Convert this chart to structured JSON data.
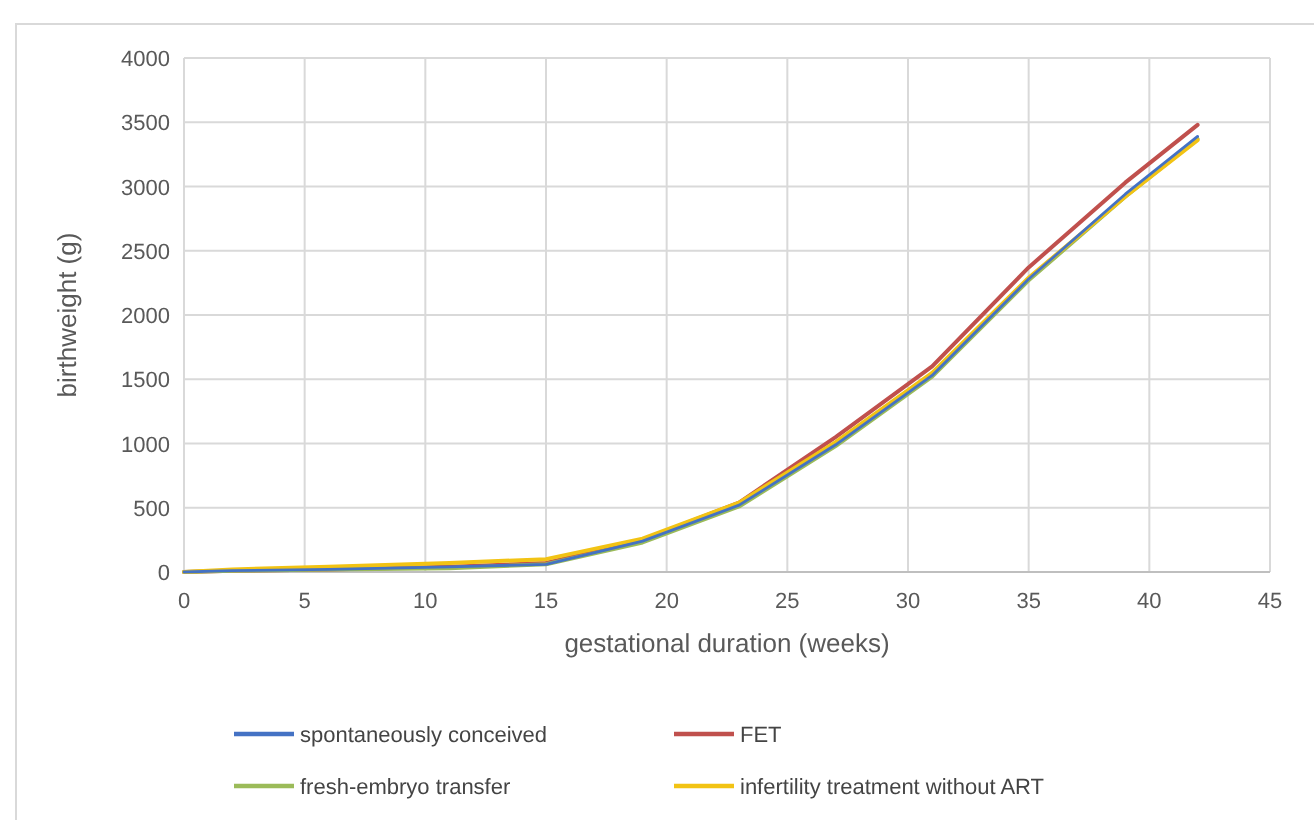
{
  "chart_data": {
    "type": "line",
    "xlabel": "gestational duration (weeks)",
    "ylabel": "birthweight (g)",
    "x": [
      0,
      2,
      6,
      11,
      15,
      19,
      23,
      27,
      31,
      35,
      39,
      42
    ],
    "series": [
      {
        "name": "spontaneously conceived",
        "color": "#4472c4",
        "values": [
          0,
          10,
          20,
          40,
          60,
          240,
          520,
          990,
          1530,
          2280,
          2940,
          3390
        ]
      },
      {
        "name": "FET",
        "color": "#c0504d",
        "values": [
          0,
          10,
          20,
          40,
          70,
          250,
          540,
          1050,
          1600,
          2370,
          3030,
          3480
        ]
      },
      {
        "name": "fresh-embryo transfer",
        "color": "#9bbb59",
        "values": [
          0,
          10,
          20,
          30,
          60,
          230,
          510,
          980,
          1520,
          2270,
          2920,
          3370
        ]
      },
      {
        "name": "infertility treatment without ART",
        "color": "#f2c314",
        "values": [
          0,
          20,
          40,
          70,
          100,
          260,
          540,
          1010,
          1550,
          2290,
          2920,
          3360
        ]
      }
    ],
    "xlim": [
      0,
      45
    ],
    "xticks": [
      0,
      5,
      10,
      15,
      20,
      25,
      30,
      35,
      40,
      45
    ],
    "ylim": [
      0,
      4000
    ],
    "yticks": [
      0,
      500,
      1000,
      1500,
      2000,
      2500,
      3000,
      3500,
      4000
    ],
    "grid": true,
    "legend": "bottom",
    "marker": "none",
    "line_style": "solid"
  }
}
